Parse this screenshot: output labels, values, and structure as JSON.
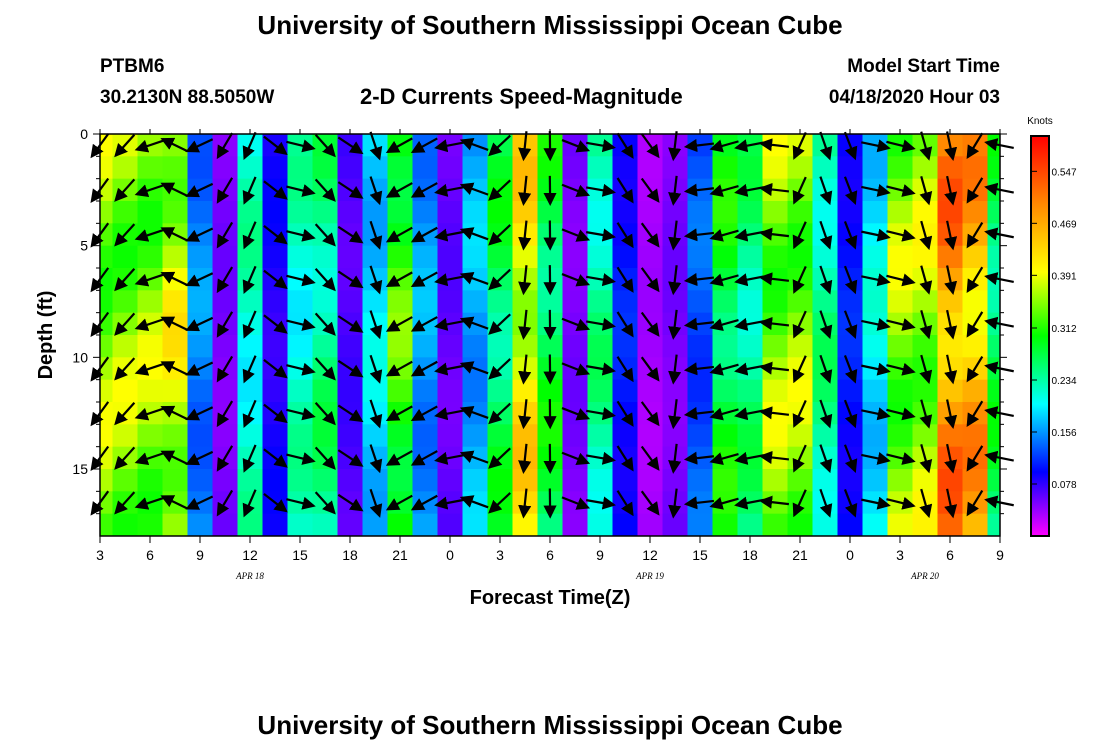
{
  "header": {
    "title_top": "University of Southern Mississippi Ocean Cube",
    "station_id": "PTBM6",
    "station_coords": "30.2130N 88.5050W",
    "plot_title": "2-D Currents Speed-Magnitude",
    "model_start_label": "Model Start Time",
    "model_start_value": "04/18/2020 Hour 03",
    "title_bottom": "University of Southern Mississippi Ocean Cube"
  },
  "chart_data": {
    "type": "heatmap",
    "title": "2-D Currents Speed-Magnitude",
    "xlabel": "Forecast Time(Z)",
    "ylabel": "Depth (ft)",
    "x_range_hours": [
      3,
      57
    ],
    "y_range_ft": [
      0,
      18
    ],
    "x_tick_labels": [
      "3",
      "6",
      "9",
      "12",
      "15",
      "18",
      "21",
      "0",
      "3",
      "6",
      "9",
      "12",
      "15",
      "18",
      "21",
      "0",
      "3",
      "6",
      "9"
    ],
    "y_tick_labels": [
      "0",
      "5",
      "10",
      "15"
    ],
    "y_tick_values": [
      0,
      5,
      10,
      15
    ],
    "day_labels": [
      {
        "text": "APR 18",
        "hour": 12
      },
      {
        "text": "APR 19",
        "hour": 36
      },
      {
        "text": "APR 20",
        "hour": 52.5
      }
    ],
    "colorbar": {
      "unit": "Knots",
      "range": [
        0,
        0.6
      ],
      "tick_labels": [
        "0.547",
        "0.469",
        "0.391",
        "0.312",
        "0.234",
        "0.156",
        "0.078"
      ],
      "tick_values": [
        0.547,
        0.469,
        0.391,
        0.312,
        0.234,
        0.156,
        0.078
      ],
      "colors": [
        "#ff00ff",
        "#0000ff",
        "#00ffff",
        "#00ff00",
        "#ffff00",
        "#ff8800",
        "#ff0000"
      ]
    },
    "speed_profile_by_hour": [
      {
        "hour": 3,
        "speed": 0.4
      },
      {
        "hour": 4.5,
        "speed": 0.4
      },
      {
        "hour": 6,
        "speed": 0.4
      },
      {
        "hour": 7.5,
        "speed": 0.43
      },
      {
        "hour": 9,
        "speed": 0.17
      },
      {
        "hour": 10.5,
        "speed": 0.06
      },
      {
        "hour": 12,
        "speed": 0.25
      },
      {
        "hour": 13.5,
        "speed": 0.1
      },
      {
        "hour": 15,
        "speed": 0.25
      },
      {
        "hour": 16.5,
        "speed": 0.28
      },
      {
        "hour": 18,
        "speed": 0.08
      },
      {
        "hour": 19.5,
        "speed": 0.21
      },
      {
        "hour": 21,
        "speed": 0.36
      },
      {
        "hour": 22.5,
        "speed": 0.18
      },
      {
        "hour": 24,
        "speed": 0.07
      },
      {
        "hour": 25.5,
        "speed": 0.19
      },
      {
        "hour": 27,
        "speed": 0.3
      },
      {
        "hour": 28.5,
        "speed": 0.46
      },
      {
        "hour": 30,
        "speed": 0.31
      },
      {
        "hour": 31.5,
        "speed": 0.06
      },
      {
        "hour": 33,
        "speed": 0.27
      },
      {
        "hour": 34.5,
        "speed": 0.12
      },
      {
        "hour": 36,
        "speed": 0.04
      },
      {
        "hour": 37.5,
        "speed": 0.06
      },
      {
        "hour": 39,
        "speed": 0.15
      },
      {
        "hour": 40.5,
        "speed": 0.32
      },
      {
        "hour": 42,
        "speed": 0.28
      },
      {
        "hour": 43.5,
        "speed": 0.4
      },
      {
        "hour": 45,
        "speed": 0.4
      },
      {
        "hour": 46.5,
        "speed": 0.27
      },
      {
        "hour": 48,
        "speed": 0.12
      },
      {
        "hour": 49.5,
        "speed": 0.22
      },
      {
        "hour": 51,
        "speed": 0.4
      },
      {
        "hour": 52.5,
        "speed": 0.41
      },
      {
        "hour": 54,
        "speed": 0.55
      },
      {
        "hour": 55.5,
        "speed": 0.52
      },
      {
        "hour": 57,
        "speed": 0.3
      }
    ]
  }
}
